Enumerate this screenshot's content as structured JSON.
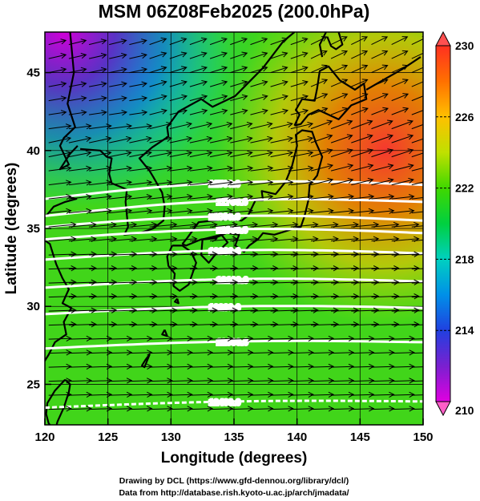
{
  "title": "MSM 06Z08Feb2025 (200.0hPa)",
  "xlabel": "Longitude (degrees)",
  "ylabel": "Latitude  (degrees)",
  "credit_line_1": "Drawing by DCL (https://www.gfd-dennou.org/library/dcl/)",
  "credit_line_2": "Data from http://database.rish.kyoto-u.ac.jp/arch/jmadata/",
  "map": {
    "lon_range": [
      120,
      150
    ],
    "lat_range": [
      22.4,
      47.6
    ],
    "lon_ticks": [
      120,
      125,
      130,
      135,
      140,
      145,
      150
    ],
    "lat_ticks": [
      25,
      30,
      35,
      40,
      45
    ]
  },
  "colorbar": {
    "min": 210,
    "max": 230,
    "labels": [
      210,
      214,
      218,
      222,
      226,
      230
    ],
    "colors": [
      "#e000e0",
      "#6020d0",
      "#1060e0",
      "#00b0e0",
      "#00d0a0",
      "#00d040",
      "#60e000",
      "#d0e000",
      "#ffb000",
      "#ff5000",
      "#ff2020"
    ]
  },
  "height_contours": [
    {
      "label": "11500.0",
      "lat": 36.9
    },
    {
      "label": "11700.0",
      "lat": 35.8
    },
    {
      "label": "11800.0",
      "lat": 35.1
    },
    {
      "label": "11900.0",
      "lat": 34.3
    },
    {
      "label": "12000.0",
      "lat": 33.0
    },
    {
      "label": "12100.0",
      "lat": 31.2
    },
    {
      "label": "12200.0",
      "lat": 29.5
    },
    {
      "label": "12300.0",
      "lat": 27.3
    },
    {
      "label": "12400.0",
      "lat": 23.5
    }
  ]
}
